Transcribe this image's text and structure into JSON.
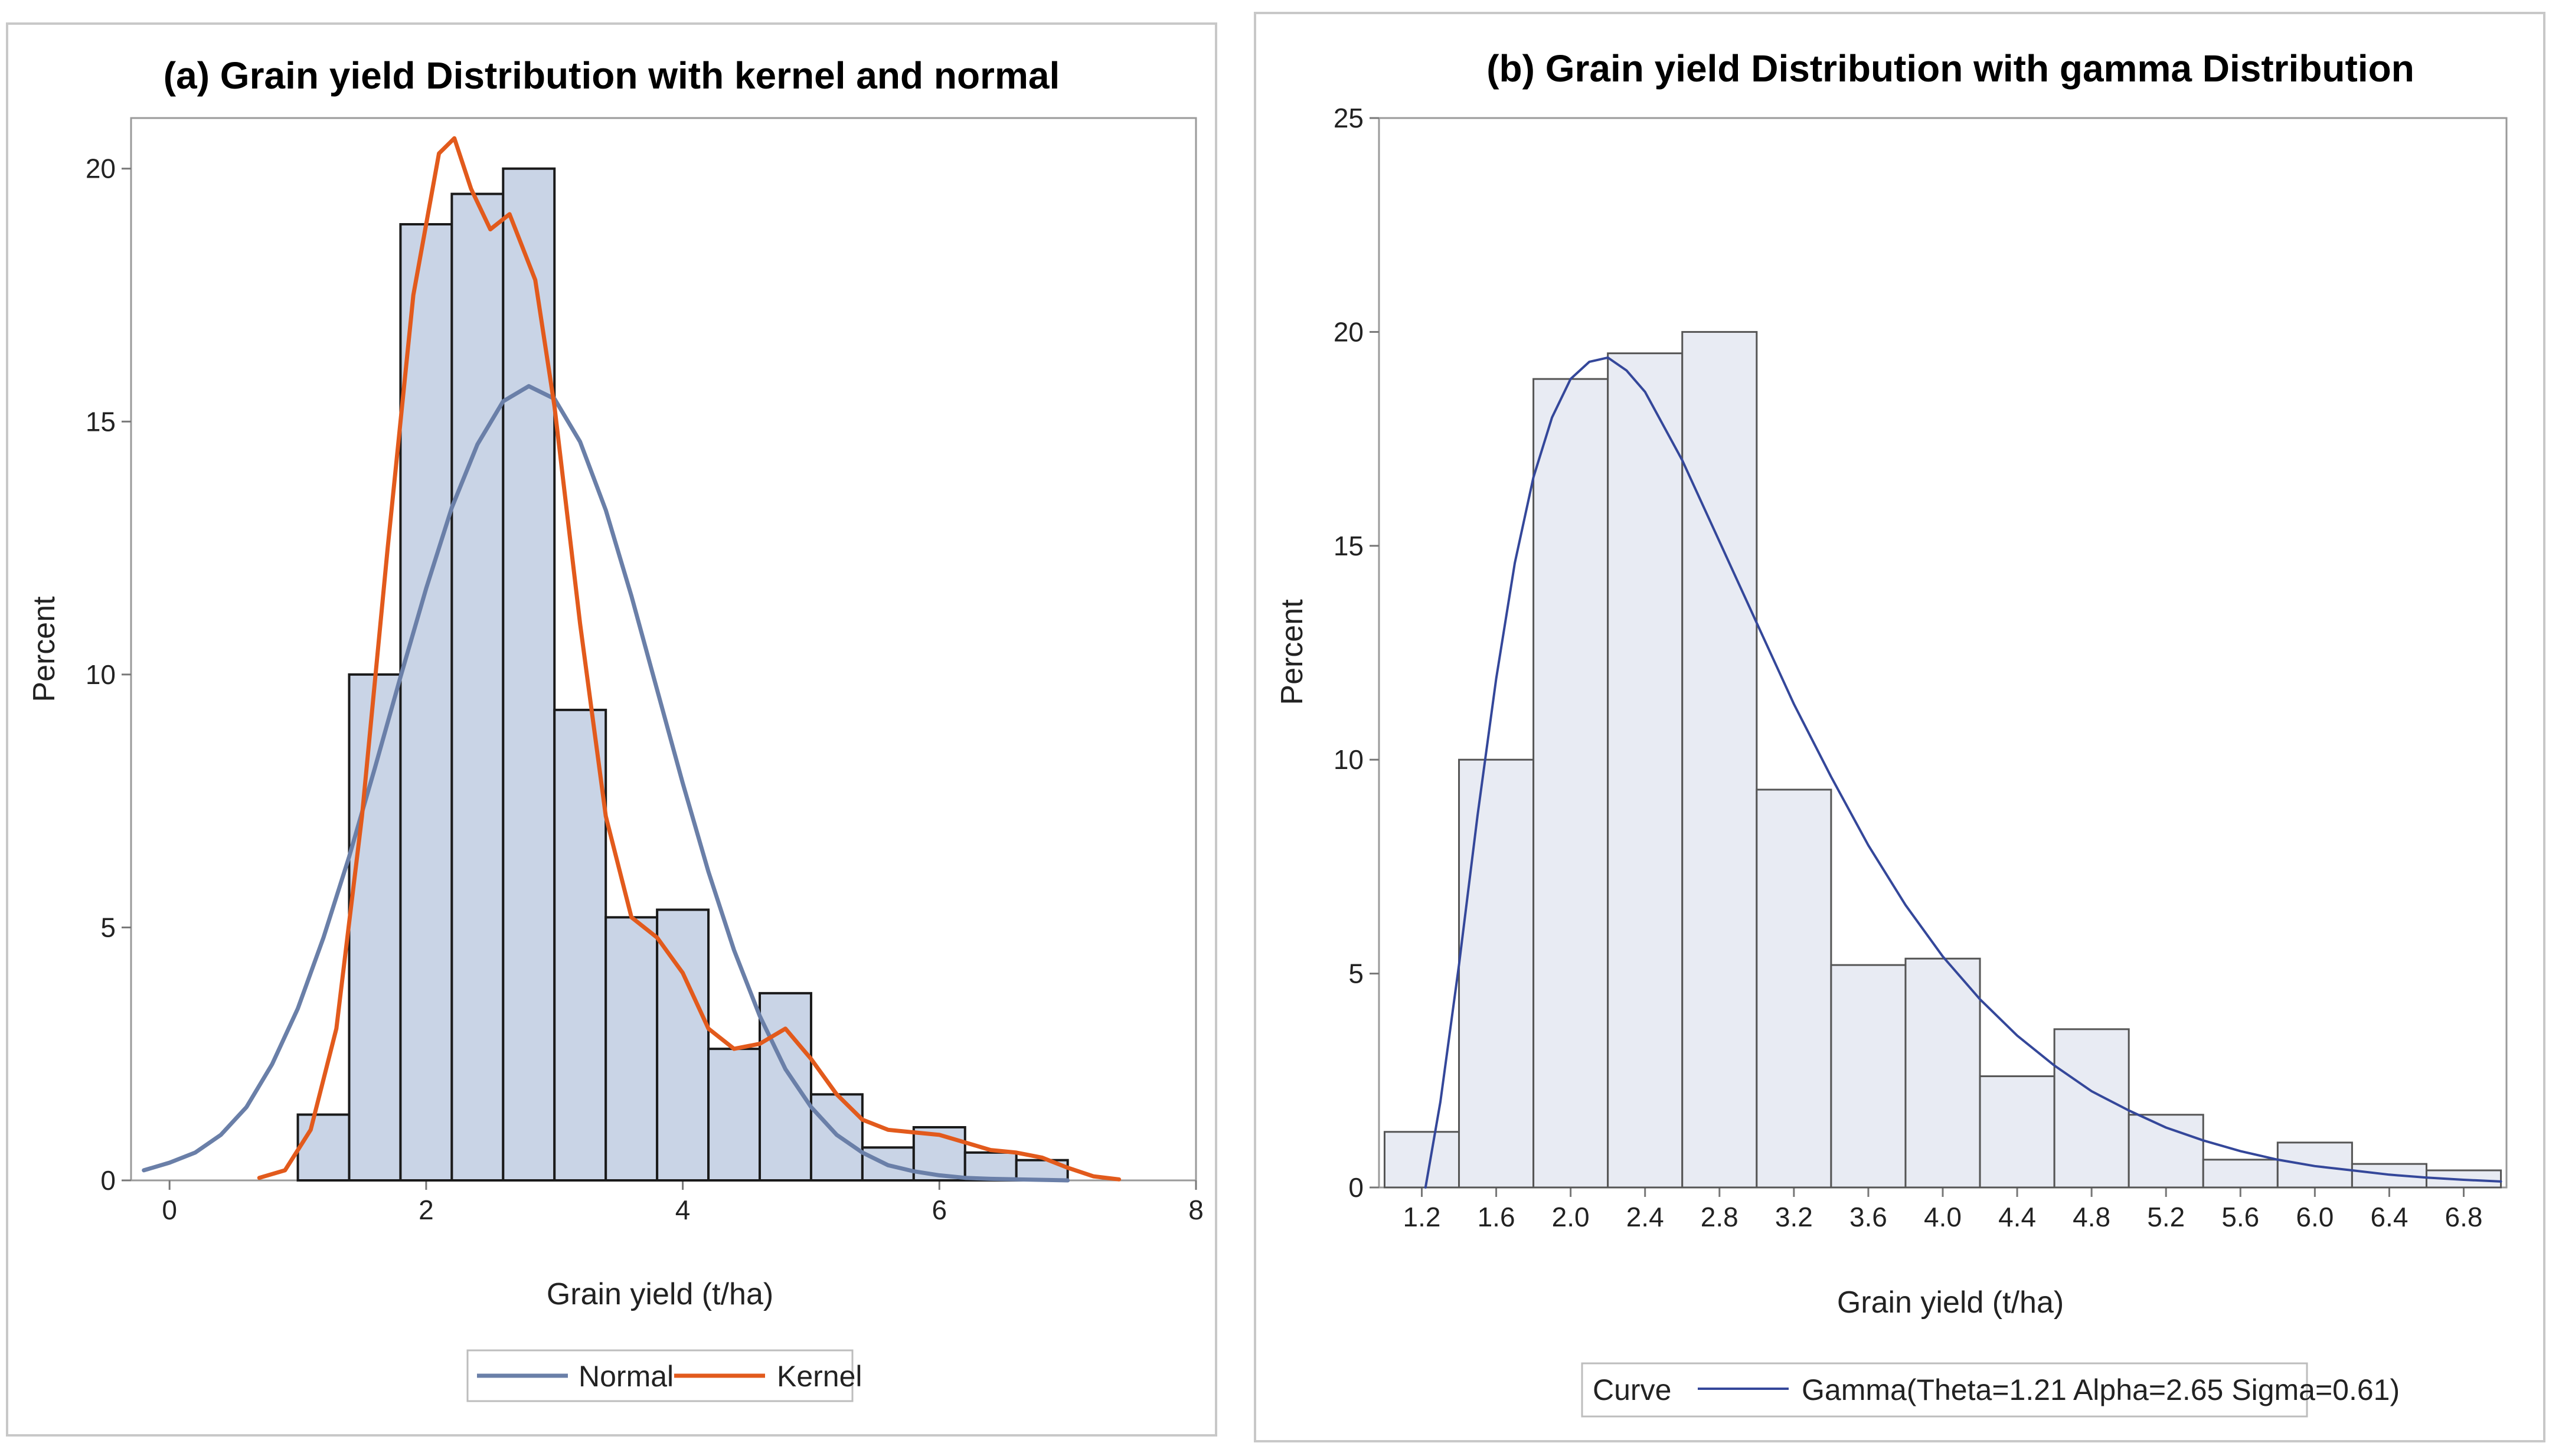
{
  "chart_data": [
    {
      "type": "bar",
      "title": "(a) Grain yield Distribution with kernel and normal",
      "xlabel": "Grain yield (t/ha)",
      "ylabel": "Percent",
      "xlim": [
        -0.3,
        8
      ],
      "ylim": [
        0,
        21
      ],
      "xticks": [
        0,
        2,
        4,
        6,
        8
      ],
      "yticks": [
        0,
        5,
        10,
        15,
        20
      ],
      "bin_width": 0.4,
      "bin_midpoints": [
        1.2,
        1.6,
        2.0,
        2.4,
        2.8,
        3.2,
        3.6,
        4.0,
        4.4,
        4.8,
        5.2,
        5.6,
        6.0,
        6.4,
        6.8
      ],
      "values": [
        1.3,
        10.0,
        18.9,
        19.5,
        20.0,
        9.3,
        5.2,
        5.35,
        2.6,
        3.7,
        1.7,
        0.65,
        1.05,
        0.55,
        0.4
      ],
      "bar_color": "#c9d4e6",
      "series": [
        {
          "name": "Normal",
          "color": "#6a7fa8",
          "x": [
            -0.2,
            0.0,
            0.2,
            0.4,
            0.6,
            0.8,
            1.0,
            1.2,
            1.4,
            1.6,
            1.8,
            2.0,
            2.2,
            2.4,
            2.6,
            2.8,
            3.0,
            3.2,
            3.4,
            3.6,
            3.8,
            4.0,
            4.2,
            4.4,
            4.6,
            4.8,
            5.0,
            5.2,
            5.4,
            5.6,
            5.8,
            6.0,
            6.2,
            6.4,
            6.6,
            6.8,
            7.0
          ],
          "y": [
            0.2,
            0.35,
            0.55,
            0.9,
            1.45,
            2.3,
            3.4,
            4.8,
            6.4,
            8.15,
            9.95,
            11.7,
            13.3,
            14.55,
            15.4,
            15.7,
            15.45,
            14.6,
            13.25,
            11.55,
            9.7,
            7.85,
            6.1,
            4.55,
            3.25,
            2.2,
            1.45,
            0.9,
            0.55,
            0.3,
            0.18,
            0.1,
            0.05,
            0.03,
            0.02,
            0.01,
            0.0
          ]
        },
        {
          "name": "Kernel",
          "color": "#e25a1c",
          "x": [
            0.7,
            0.9,
            1.1,
            1.3,
            1.5,
            1.7,
            1.9,
            2.1,
            2.22,
            2.35,
            2.5,
            2.65,
            2.85,
            3.0,
            3.2,
            3.4,
            3.6,
            3.8,
            4.0,
            4.2,
            4.4,
            4.6,
            4.8,
            5.0,
            5.2,
            5.4,
            5.6,
            5.8,
            6.0,
            6.2,
            6.4,
            6.6,
            6.8,
            7.0,
            7.2,
            7.4
          ],
          "y": [
            0.05,
            0.2,
            1.0,
            3.0,
            7.2,
            12.5,
            17.5,
            20.3,
            20.6,
            19.6,
            18.8,
            19.1,
            17.8,
            15.3,
            11.0,
            7.2,
            5.2,
            4.8,
            4.1,
            3.0,
            2.6,
            2.7,
            3.0,
            2.4,
            1.7,
            1.2,
            1.0,
            0.95,
            0.9,
            0.75,
            0.6,
            0.55,
            0.45,
            0.25,
            0.08,
            0.02
          ]
        }
      ],
      "legend": {
        "position": "bottom",
        "entries": [
          "Normal",
          "Kernel"
        ]
      }
    },
    {
      "type": "bar",
      "title": "(b) Grain yield Distribution with gamma Distribution",
      "xlabel": "Grain yield (t/ha)",
      "ylabel": "Percent",
      "xlim": [
        0.97,
        7.03
      ],
      "ylim": [
        0,
        25
      ],
      "xticks": [
        "1.2",
        "1.6",
        "2.0",
        "2.4",
        "2.8",
        "3.2",
        "3.6",
        "4.0",
        "4.4",
        "4.8",
        "5.2",
        "5.6",
        "6.0",
        "6.4",
        "6.8"
      ],
      "yticks": [
        0,
        5,
        10,
        15,
        20,
        25
      ],
      "bin_width": 0.4,
      "bin_midpoints": [
        1.2,
        1.6,
        2.0,
        2.4,
        2.8,
        3.2,
        3.6,
        4.0,
        4.4,
        4.8,
        5.2,
        5.6,
        6.0,
        6.4,
        6.8
      ],
      "values": [
        1.3,
        10.0,
        18.9,
        19.5,
        20.0,
        9.3,
        5.2,
        5.35,
        2.6,
        3.7,
        1.7,
        0.65,
        1.05,
        0.55,
        0.4
      ],
      "bar_color": "#e8ebf3",
      "series": [
        {
          "name": "Gamma(Theta=1.21 Alpha=2.65 Sigma=0.61)",
          "color": "#34479a",
          "x": [
            1.22,
            1.3,
            1.4,
            1.5,
            1.6,
            1.7,
            1.8,
            1.9,
            2.0,
            2.1,
            2.2,
            2.3,
            2.4,
            2.6,
            2.8,
            3.0,
            3.2,
            3.4,
            3.6,
            3.8,
            4.0,
            4.2,
            4.4,
            4.6,
            4.8,
            5.0,
            5.2,
            5.4,
            5.6,
            5.8,
            6.0,
            6.2,
            6.4,
            6.6,
            6.8,
            7.0
          ],
          "y": [
            0.0,
            2.0,
            5.2,
            8.7,
            11.9,
            14.6,
            16.6,
            18.0,
            18.9,
            19.3,
            19.4,
            19.1,
            18.6,
            17.0,
            15.1,
            13.2,
            11.3,
            9.6,
            8.0,
            6.6,
            5.4,
            4.4,
            3.55,
            2.85,
            2.25,
            1.8,
            1.4,
            1.1,
            0.85,
            0.65,
            0.5,
            0.4,
            0.3,
            0.23,
            0.18,
            0.14
          ]
        }
      ],
      "legend": {
        "position": "bottom",
        "header": "Curve",
        "entries": [
          "Gamma(Theta=1.21 Alpha=2.65 Sigma=0.61)"
        ]
      }
    }
  ]
}
